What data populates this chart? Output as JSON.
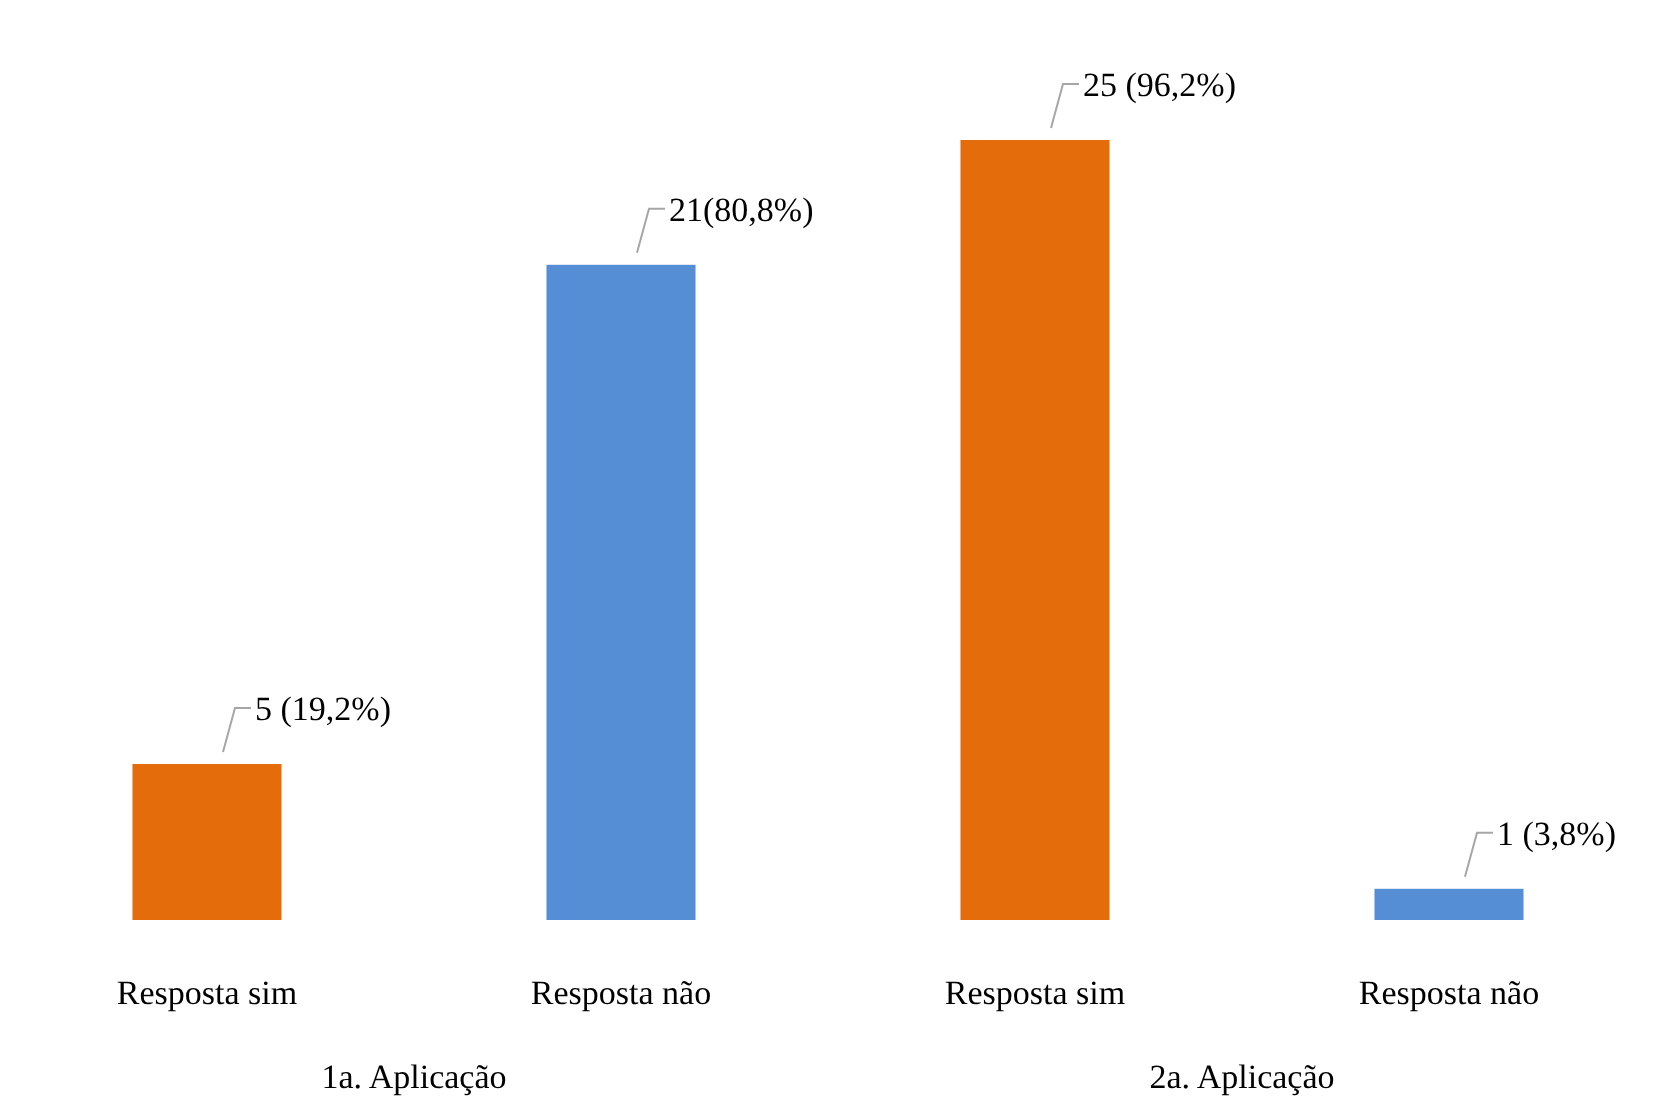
{
  "chart_data": {
    "type": "bar",
    "categories": [
      "Resposta sim",
      "Resposta não",
      "Resposta sim",
      "Resposta não"
    ],
    "values": [
      5,
      21,
      25,
      1
    ],
    "colors": [
      "#e46c0a",
      "#558ed5",
      "#e46c0a",
      "#558ed5"
    ],
    "value_labels": [
      "5 (19,2%)",
      "21(80,8%)",
      "25 (96,2%)",
      "1 (3,8%)"
    ],
    "annotations": [
      "1a. Aplicação",
      "2a. Aplicação"
    ]
  }
}
